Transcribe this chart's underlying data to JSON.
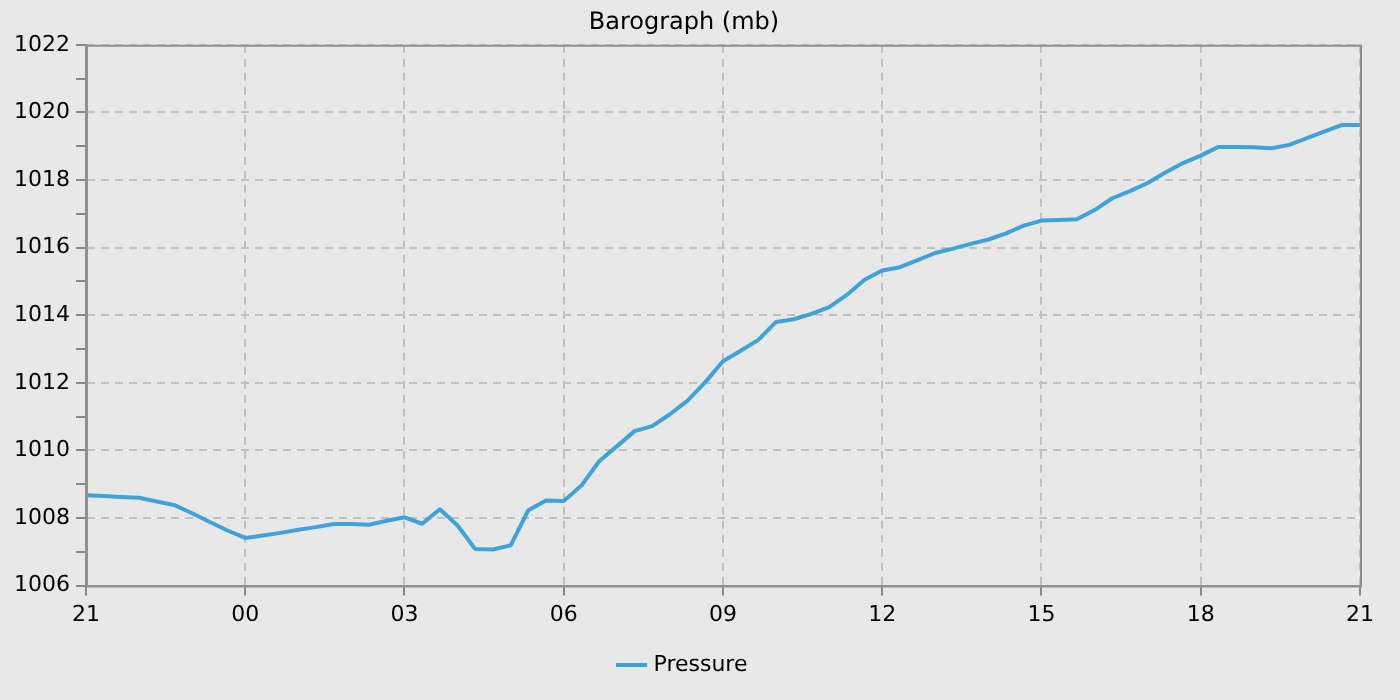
{
  "chart_data": {
    "type": "line",
    "title": "Barograph (mb)",
    "categories": [
      "21",
      null,
      null,
      null,
      null,
      null,
      null,
      null,
      null,
      "00",
      null,
      null,
      null,
      null,
      null,
      null,
      null,
      null,
      "03",
      null,
      null,
      null,
      null,
      null,
      null,
      null,
      null,
      "06",
      null,
      null,
      null,
      null,
      null,
      null,
      null,
      null,
      "09",
      null,
      null,
      null,
      null,
      null,
      null,
      null,
      null,
      "12",
      null,
      null,
      null,
      null,
      null,
      null,
      null,
      null,
      "15",
      null,
      null,
      null,
      null,
      null,
      null,
      null,
      null,
      "18",
      null,
      null,
      null,
      null,
      null,
      null,
      null,
      null,
      "21"
    ],
    "series": [
      {
        "name": "Pressure",
        "color": "#3fa3d8",
        "values": [
          1008.67,
          1008.65,
          1008.62,
          1008.6,
          1008.49,
          1008.38,
          1008.14,
          1007.88,
          1007.63,
          1007.41,
          1007.48,
          1007.56,
          1007.65,
          1007.73,
          1007.82,
          1007.82,
          1007.8,
          1007.92,
          1008.02,
          1007.83,
          1008.26,
          1007.78,
          1007.08,
          1007.07,
          1007.19,
          1008.23,
          1008.52,
          1008.5,
          1008.96,
          1009.68,
          1010.12,
          1010.57,
          1010.72,
          1011.07,
          1011.47,
          1012.02,
          1012.64,
          1012.95,
          1013.27,
          1013.8,
          1013.88,
          1014.04,
          1014.24,
          1014.6,
          1015.05,
          1015.32,
          1015.42,
          1015.63,
          1015.84,
          1015.97,
          1016.11,
          1016.24,
          1016.42,
          1016.65,
          1016.8,
          1016.82,
          1016.84,
          1017.11,
          1017.46,
          1017.67,
          1017.91,
          1018.22,
          1018.5,
          1018.72,
          1018.98,
          1018.98,
          1018.97,
          1018.94,
          1019.04,
          1019.24,
          1019.44,
          1019.63,
          1019.63
        ]
      }
    ],
    "ylim": [
      1006,
      1022
    ],
    "yticks": [
      1006,
      {
        "value": 1007,
        "label": null
      },
      1008,
      {
        "value": 1009,
        "label": null
      },
      1010,
      {
        "value": 1011,
        "label": null
      },
      1012,
      {
        "value": 1013,
        "label": null
      },
      1014,
      {
        "value": 1015,
        "label": null
      },
      1016,
      {
        "value": 1017,
        "label": null
      },
      1018,
      {
        "value": 1019,
        "label": null
      },
      1020,
      {
        "value": 1021,
        "label": null
      },
      1022
    ],
    "grid": true,
    "legend": "bottom",
    "marker": "none",
    "line_style": "solid"
  }
}
